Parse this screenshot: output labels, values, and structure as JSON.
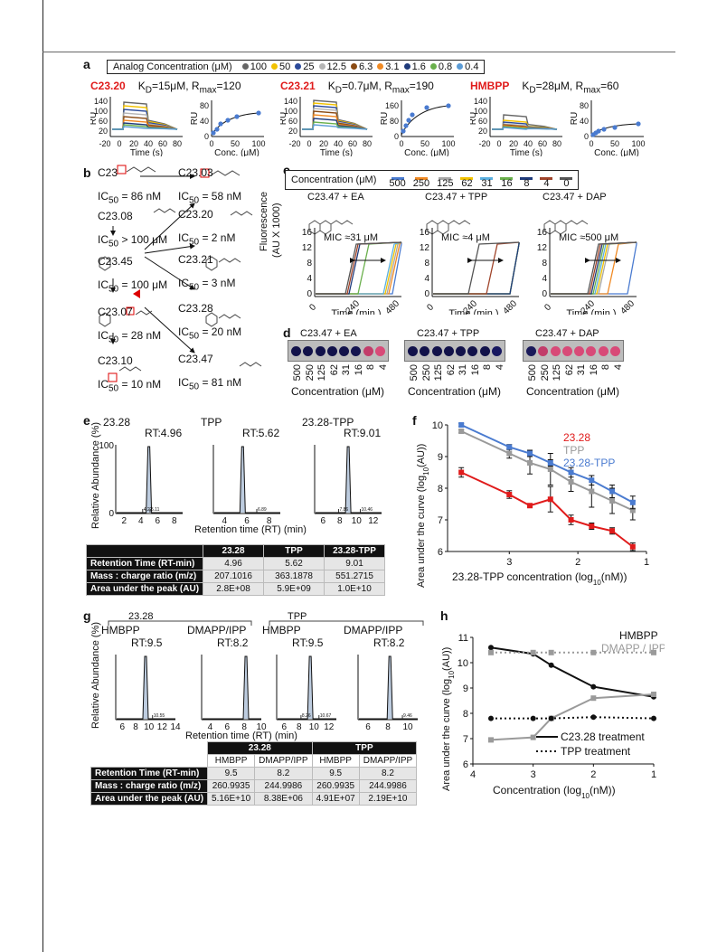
{
  "panel_labels": {
    "a": "a",
    "b": "b",
    "c": "c",
    "d": "d",
    "e": "e",
    "f": "f",
    "g": "g",
    "h": "h"
  },
  "panel_a": {
    "legend_title": "Analog Concentration (μM)",
    "legend": [
      {
        "label": "100",
        "color": "#666666"
      },
      {
        "label": "50",
        "color": "#f2c200"
      },
      {
        "label": "25",
        "color": "#2b4a9a"
      },
      {
        "label": "12.5",
        "color": "#b5b5b5"
      },
      {
        "label": "6.3",
        "color": "#8a4a12"
      },
      {
        "label": "3.1",
        "color": "#f08a24"
      },
      {
        "label": "1.6",
        "color": "#1f3a7a"
      },
      {
        "label": "0.8",
        "color": "#6ab04c"
      },
      {
        "label": "0.4",
        "color": "#5b9bd5"
      }
    ],
    "blocks": [
      {
        "name": "C23.20",
        "kd": "K",
        "kd_sub": "D",
        "kd_rest": "=15μM, R",
        "rmax_sub": "max",
        "rmax_val": "=120",
        "ylabel": "RU",
        "xlabel": "Time (s)",
        "x_ticks": [
          "-20",
          "0",
          "20",
          "40",
          "60",
          "80"
        ],
        "y_ticks": [
          "20",
          "60",
          "100",
          "140"
        ],
        "fit_ylabel": "RU",
        "fit_xlabel": "Conc. (μM)",
        "fit_x": [
          "0",
          "50",
          "100"
        ],
        "fit_y": [
          "0",
          "40",
          "80"
        ]
      },
      {
        "name": "C23.21",
        "kd": "K",
        "kd_sub": "D",
        "kd_rest": "=0.7μM, R",
        "rmax_sub": "max",
        "rmax_val": "=190",
        "ylabel": "RU",
        "xlabel": "Time (s)",
        "x_ticks": [
          "-20",
          "0",
          "20",
          "40",
          "60",
          "80"
        ],
        "y_ticks": [
          "20",
          "60",
          "100",
          "140"
        ],
        "fit_ylabel": "RU",
        "fit_xlabel": "Conc. (μM)",
        "fit_x": [
          "0",
          "50",
          "100"
        ],
        "fit_y": [
          "0",
          "80",
          "160"
        ]
      },
      {
        "name": "HMBPP",
        "kd": "K",
        "kd_sub": "D",
        "kd_rest": "=28μM, R",
        "rmax_sub": "max",
        "rmax_val": "=60",
        "ylabel": "RU",
        "xlabel": "Time (s)",
        "x_ticks": [
          "-20",
          "0",
          "20",
          "40",
          "60",
          "80"
        ],
        "y_ticks": [
          "20",
          "60",
          "100",
          "140"
        ],
        "fit_ylabel": "RU",
        "fit_xlabel": "Conc. (μM)",
        "fit_x": [
          "0",
          "50",
          "100"
        ],
        "fit_y": [
          "0",
          "40",
          "80"
        ]
      }
    ]
  },
  "panel_b": {
    "compounds": [
      {
        "name": "C23",
        "ic": "IC",
        "ic_sub": "50",
        "ic_val": " = 86 nM"
      },
      {
        "name": "C23.03",
        "ic": "IC",
        "ic_sub": "50",
        "ic_val": " = 58 nM"
      },
      {
        "name": "C23.08",
        "ic": "IC",
        "ic_sub": "50",
        "ic_val": " > 100 μM"
      },
      {
        "name": "C23.20",
        "ic": "IC",
        "ic_sub": "50",
        "ic_val": " = 2 nM"
      },
      {
        "name": "C23.45",
        "ic": "IC",
        "ic_sub": "50",
        "ic_val": " = 100 μM"
      },
      {
        "name": "C23.21",
        "ic": "IC",
        "ic_sub": "50",
        "ic_val": " = 3 nM"
      },
      {
        "name": "C23.07",
        "ic": "IC",
        "ic_sub": "50",
        "ic_val": " = 28 nM"
      },
      {
        "name": "C23.28",
        "ic": "IC",
        "ic_sub": "50",
        "ic_val": " = 20 nM"
      },
      {
        "name": "C23.10",
        "ic": "IC",
        "ic_sub": "50",
        "ic_val": " = 10 nM"
      },
      {
        "name": "C23.47",
        "ic": "IC",
        "ic_sub": "50",
        "ic_val": " = 81 nM"
      }
    ]
  },
  "panel_c": {
    "legend_title": "Concentration (μM)",
    "legend": [
      {
        "label": "500",
        "color": "#4a7bd0"
      },
      {
        "label": "250",
        "color": "#f08a24"
      },
      {
        "label": "125",
        "color": "#a8a8a8"
      },
      {
        "label": "62",
        "color": "#f2c200"
      },
      {
        "label": "31",
        "color": "#5bb0e0"
      },
      {
        "label": "16",
        "color": "#6ab04c"
      },
      {
        "label": "8",
        "color": "#1f3a7a"
      },
      {
        "label": "4",
        "color": "#a0442a"
      },
      {
        "label": "0",
        "color": "#555555"
      }
    ],
    "ylabel": "Fluorescence",
    "ylabel2": "(AU X 1000)",
    "plots": [
      {
        "title": "C23.47 + EA",
        "mic": "MIC ≈31 μM",
        "xlabel": "Time (min.)",
        "x_ticks": [
          "0",
          "240",
          "480"
        ],
        "y_ticks": [
          "0",
          "4",
          "8",
          "12",
          "16"
        ]
      },
      {
        "title": "C23.47 + TPP",
        "mic": "MIC ≈4 μM",
        "xlabel": "Time (min.)",
        "x_ticks": [
          "0",
          "240",
          "480"
        ],
        "y_ticks": [
          "0",
          "4",
          "8",
          "12",
          "16"
        ]
      },
      {
        "title": "C23.47 + DAP",
        "mic": "MIC ≈500 μM",
        "xlabel": "Time (min.)",
        "x_ticks": [
          "0",
          "240",
          "480"
        ],
        "y_ticks": [
          "0",
          "4",
          "8",
          "12",
          "16"
        ]
      }
    ]
  },
  "panel_d": {
    "plates": [
      {
        "title": "C23.47 + EA",
        "xlabel": "Concentration (μM)",
        "ticks": [
          "500",
          "250",
          "125",
          "62",
          "31",
          "16",
          "8",
          "4"
        ],
        "wells": [
          "#12124a",
          "#12124a",
          "#12124a",
          "#12124a",
          "#12124a",
          "#141450",
          "#c23d6a",
          "#d84a78"
        ]
      },
      {
        "title": "C23.47 + TPP",
        "xlabel": "Concentration (μM)",
        "ticks": [
          "500",
          "250",
          "125",
          "62",
          "31",
          "16",
          "8",
          "4"
        ],
        "wells": [
          "#12124a",
          "#12124a",
          "#12124a",
          "#12124a",
          "#12124a",
          "#12124a",
          "#12124a",
          "#181860"
        ]
      },
      {
        "title": "C23.47 + DAP",
        "xlabel": "Concentration (μM)",
        "ticks": [
          "500",
          "250",
          "125",
          "62",
          "31",
          "16",
          "8",
          "4"
        ],
        "wells": [
          "#1a1a5a",
          "#c23d6a",
          "#d84a78",
          "#d84a78",
          "#d84a78",
          "#d84a78",
          "#d84a78",
          "#d84a78"
        ]
      }
    ]
  },
  "panel_e": {
    "ylabel": "Relative Abundance (%)",
    "xlabel": "Retention time (RT) (min)",
    "y_top": "100",
    "y_bottom": "0",
    "traces": [
      {
        "name": "23.28",
        "rt": "RT:4.96",
        "x_ticks": [
          "2",
          "4",
          "6",
          "8"
        ],
        "peak": 4.96,
        "xmin": 1,
        "xmax": 9,
        "minor": [
          "4.22",
          "5.11"
        ]
      },
      {
        "name": "TPP",
        "rt": "RT:5.62",
        "x_ticks": [
          "4",
          "6",
          "8"
        ],
        "peak": 5.62,
        "xmin": 3,
        "xmax": 9,
        "minor": [
          "6.89"
        ]
      },
      {
        "name": "23.28-TPP",
        "rt": "RT:9.01",
        "x_ticks": [
          "6",
          "8",
          "10",
          "12"
        ],
        "peak": 9.01,
        "xmin": 5,
        "xmax": 13,
        "minor": [
          "7.86",
          "10.46"
        ]
      }
    ],
    "table": {
      "headers": [
        "",
        "23.28",
        "TPP",
        "23.28-TPP"
      ],
      "rows": [
        {
          "label": "Retention Time (RT-min)",
          "values": [
            "4.96",
            "5.62",
            "9.01"
          ]
        },
        {
          "label": "Mass : charge ratio (m/z)",
          "values": [
            "207.1016",
            "363.1878",
            "551.2715"
          ]
        },
        {
          "label": "Area under the peak (AU)",
          "values": [
            "2.8E+08",
            "5.9E+09",
            "1.0E+10"
          ]
        }
      ]
    }
  },
  "panel_g": {
    "ylabel": "Relative Abundance (%)",
    "xlabel": "Retention time (RT) (min)",
    "group1": "23.28",
    "group2": "TPP",
    "traces": [
      {
        "name": "HMBPP",
        "rt": "RT:9.5",
        "x_ticks": [
          "6",
          "8",
          "10",
          "12",
          "14"
        ],
        "peak": 9.5,
        "xmin": 5,
        "xmax": 14,
        "minor": [
          "10.55"
        ]
      },
      {
        "name": "DMAPP/IPP",
        "rt": "RT:8.2",
        "x_ticks": [
          "4",
          "6",
          "8",
          "10"
        ],
        "peak": 8.2,
        "xmin": 3,
        "xmax": 10,
        "minor": []
      },
      {
        "name": "HMBPP",
        "rt": "RT:9.5",
        "x_ticks": [
          "6",
          "8",
          "10",
          "12"
        ],
        "peak": 9.5,
        "xmin": 5,
        "xmax": 13,
        "minor": [
          "8.26",
          "10.67"
        ]
      },
      {
        "name": "DMAPP/IPP",
        "rt": "RT:8.2",
        "x_ticks": [
          "6",
          "8",
          "10"
        ],
        "peak": 8.2,
        "xmin": 5,
        "xmax": 11,
        "minor": [
          "9.46"
        ]
      }
    ],
    "table": {
      "group_headers": [
        "23.28",
        "TPP"
      ],
      "headers": [
        "HMBPP",
        "DMAPP/IPP",
        "HMBPP",
        "DMAPP/IPP"
      ],
      "rows": [
        {
          "label": "Retention Time (RT-min)",
          "values": [
            "9.5",
            "8.2",
            "9.5",
            "8.2"
          ]
        },
        {
          "label": "Mass : charge ratio (m/z)",
          "values": [
            "260.9935",
            "244.9986",
            "260.9935",
            "244.9986"
          ]
        },
        {
          "label": "Area under the peak (AU)",
          "values": [
            "5.16E+10",
            "8.38E+06",
            "4.91E+07",
            "2.19E+10"
          ]
        }
      ]
    }
  },
  "chart_data": [
    {
      "type": "line",
      "panel": "f",
      "xlabel": "23.28-TPP concentration (log10(nM))",
      "ylabel": "Area under the curve (log10(AU))",
      "xlim": [
        3.9,
        1
      ],
      "ylim": [
        6,
        10
      ],
      "x_ticks": [
        "3",
        "2",
        "1"
      ],
      "y_ticks": [
        "6",
        "7",
        "8",
        "9",
        "10"
      ],
      "series": [
        {
          "name": "23.28",
          "color": "#e01b1b",
          "x": [
            3.7,
            3.0,
            2.7,
            2.4,
            2.1,
            1.8,
            1.5,
            1.2
          ],
          "y": [
            8.5,
            7.8,
            7.45,
            7.65,
            7.0,
            6.8,
            6.65,
            6.15
          ],
          "err": [
            0.15,
            0.12,
            0.05,
            0.4,
            0.15,
            0.1,
            0.1,
            0.12
          ]
        },
        {
          "name": "TPP",
          "color": "#9a9a9a",
          "x": [
            3.7,
            3.0,
            2.7,
            2.4,
            2.1,
            1.8,
            1.5,
            1.2
          ],
          "y": [
            9.8,
            9.1,
            8.8,
            8.6,
            8.2,
            7.9,
            7.6,
            7.3
          ],
          "err": [
            0.05,
            0.15,
            0.35,
            0.5,
            0.3,
            0.5,
            0.4,
            0.3
          ]
        },
        {
          "name": "23.28-TPP",
          "color": "#4a7bd0",
          "x": [
            3.7,
            3.0,
            2.7,
            2.4,
            2.1,
            1.8,
            1.5,
            1.2
          ],
          "y": [
            10.0,
            9.3,
            9.1,
            8.8,
            8.5,
            8.25,
            7.9,
            7.55
          ],
          "err": [
            0.05,
            0.08,
            0.1,
            0.1,
            0.15,
            0.15,
            0.2,
            0.2
          ]
        }
      ],
      "legend_position": "top-right"
    },
    {
      "type": "line",
      "panel": "h",
      "xlabel": "Concentration (log10(nM))",
      "ylabel": "Area under the curve (log10(AU))",
      "xlim": [
        4,
        1
      ],
      "ylim": [
        6,
        11
      ],
      "x_ticks": [
        "4",
        "3",
        "2",
        "1"
      ],
      "y_ticks": [
        "6",
        "7",
        "8",
        "9",
        "10",
        "11"
      ],
      "series": [
        {
          "name": "HMBPP",
          "treatment": "C23.28",
          "color": "#111111",
          "x": [
            3.7,
            3.0,
            2.7,
            2.0,
            1.0
          ],
          "y": [
            10.6,
            10.35,
            9.9,
            9.05,
            8.65
          ]
        },
        {
          "name": "DMAPP / IPP",
          "treatment": "C23.28",
          "color": "#9a9a9a",
          "x": [
            3.7,
            3.0,
            2.7,
            2.0,
            1.0
          ],
          "y": [
            6.95,
            7.05,
            7.8,
            8.6,
            8.75
          ]
        },
        {
          "name": "HMBPP",
          "treatment": "TPP",
          "color": "#111111",
          "x": [
            3.7,
            3.0,
            2.7,
            2.0,
            1.0
          ],
          "y": [
            7.8,
            7.8,
            7.8,
            7.85,
            7.8
          ]
        },
        {
          "name": "DMAPP / IPP",
          "treatment": "TPP",
          "color": "#9a9a9a",
          "x": [
            3.7,
            3.0,
            2.7,
            2.0,
            1.0
          ],
          "y": [
            10.4,
            10.4,
            10.4,
            10.4,
            10.4
          ]
        }
      ],
      "legend": [
        "HMBPP",
        "DMAPP / IPP"
      ],
      "line_legend": [
        "C23.28 treatment",
        "TPP treatment"
      ],
      "legend_position": "top-right"
    }
  ]
}
